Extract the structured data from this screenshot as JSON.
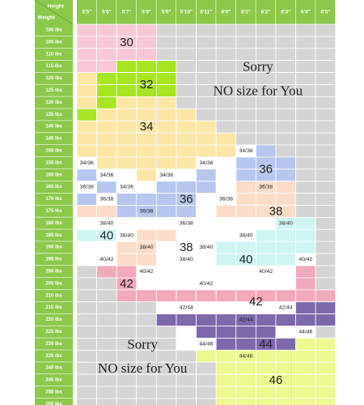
{
  "chart_data": {
    "type": "heatmap",
    "title": "",
    "axis_corner": {
      "top": "Height",
      "left": "Weight"
    },
    "heights": [
      "5'5\"",
      "5'6\"",
      "5'7\"",
      "5'8\"",
      "5'9\"",
      "5'10\"",
      "5'11\"",
      "6'0\"",
      "6'1\"",
      "6'2\"",
      "6'3\"",
      "6'4\"",
      "6'5\""
    ],
    "weights": [
      "100 lbs",
      "105 lbs",
      "110 lbs",
      "115 lbs",
      "120 lbs",
      "125 lbs",
      "130 lbs",
      "135 lbs",
      "140 lbs",
      "145 lbs",
      "150 lbs",
      "155 lbs",
      "160 lbs",
      "165 lbs",
      "170 lbs",
      "175 lbs",
      "180 lbs",
      "185 lbs",
      "190 lbs",
      "195 lbs",
      "200 lbs",
      "205 lbs",
      "210 lbs",
      "215 lbs",
      "220 lbs",
      "225 lbs",
      "230 lbs",
      "235 lbs",
      "240 lbs",
      "245 lbs",
      "250 lbs",
      "255 lbs"
    ],
    "sizes": {
      "30": "#f7c7d6",
      "32": "#a6e51f",
      "34": "#fce6a6",
      "36": "#b6c6ef",
      "38": "#fbdcc8",
      "40": "#cff5f3",
      "42": "#f2a9bb",
      "44": "#7d68ac",
      "46": "#eef890",
      "blank": "#d4d4d4",
      "white": "#ffffff"
    },
    "grid": [
      "30 30 30 30 blank blank blank blank blank blank blank blank blank",
      "30 30 30 30 blank blank blank blank blank blank blank blank blank",
      "30 30 30 30 blank blank blank blank blank blank blank blank blank",
      "30 30 32 32 32 blank blank blank blank blank blank blank blank",
      "34 32 32 32 32 blank blank blank blank blank blank blank blank",
      "34 32 32 32 32 blank blank blank blank blank blank blank blank",
      "34 32 34 34 34 blank blank blank blank blank blank blank blank",
      "32 34 34 34 34 34 blank blank blank blank blank blank blank",
      "34 34 34 34 34 34 34 blank blank blank blank blank blank",
      "34 34 34 34 34 34 34 34 blank blank blank blank blank",
      "34 34 34 34 34 34 34 34 white 36 blank blank blank",
      "white 34 34 34 34 34 white white 36 36 36 blank blank",
      "36 white white 34 white white 36 white 36 36 36 blank blank",
      "white 36 white white 36 36 36 white 38 38 38 blank blank",
      "36 white 36 36 36 36 white white 38 38 38 blank blank",
      "38 38 36 36 36 36 white 38 38 38 38 blank blank",
      "white white white white white white white white white white 40 40 blank",
      "40 40 white 38 38 white white white white 40 40 40 blank",
      "white white 38 38 white white white 40 40 40 40 40 blank",
      "white white 38 38 white white white 40 40 40 40 white blank",
      "blank 42 42 white white white white white white white white 42 blank",
      "blank blank 42 white white white white white white white white 42 blank",
      "blank blank 42 42 42 42 42 42 42 42 42 42 42",
      "blank blank blank blank white white white white white white white 44 44",
      "blank blank blank blank 44 44 44 44 44 44 44 44 44",
      "blank blank blank blank blank white 44 44 44 44 white white blank",
      "blank blank blank blank blank white white 44 44 44 44 46 46",
      "blank blank blank blank blank blank 46 46 46 46 46 46 46",
      "blank blank blank blank blank blank blank 46 46 46 46 46 46",
      "blank blank blank blank blank blank blank 46 46 46 46 46 46",
      "blank blank blank blank blank blank blank 46 46 46 46 46 46",
      "blank blank blank blank blank blank blank 46 46 46 46 46 46"
    ],
    "cell_labels": [
      {
        "text": "34/36",
        "row": 11,
        "col": 0
      },
      {
        "text": "34/36",
        "row": 12,
        "col": 1
      },
      {
        "text": "34/36",
        "row": 12,
        "col": 4
      },
      {
        "text": "34/36",
        "row": 11,
        "col": 6
      },
      {
        "text": "34/36",
        "row": 10,
        "col": 8
      },
      {
        "text": "36/38",
        "row": 13,
        "col": 0
      },
      {
        "text": "34/36",
        "row": 13,
        "col": 2
      },
      {
        "text": "36/38",
        "row": 14,
        "col": 1
      },
      {
        "text": "36/38",
        "row": 14,
        "col": 7
      },
      {
        "text": "36/38",
        "row": 13,
        "col": 9
      },
      {
        "text": "36/38",
        "row": 15,
        "col": 3
      },
      {
        "text": "38/40",
        "row": 16,
        "col": 1
      },
      {
        "text": "36/38",
        "row": 16,
        "col": 5
      },
      {
        "text": "38/40",
        "row": 16,
        "col": 10
      },
      {
        "text": "38/40",
        "row": 17,
        "col": 2
      },
      {
        "text": "38/40",
        "row": 17,
        "col": 8
      },
      {
        "text": "38/40",
        "row": 18,
        "col": 3
      },
      {
        "text": "38/40",
        "row": 18,
        "col": 6
      },
      {
        "text": "40/42",
        "row": 19,
        "col": 1
      },
      {
        "text": "38/40",
        "row": 19,
        "col": 5
      },
      {
        "text": "40/42",
        "row": 19,
        "col": 11
      },
      {
        "text": "40/42",
        "row": 20,
        "col": 3
      },
      {
        "text": "40/42",
        "row": 20,
        "col": 9
      },
      {
        "text": "40/42",
        "row": 21,
        "col": 6
      },
      {
        "text": "42/44",
        "row": 23,
        "col": 5
      },
      {
        "text": "42/44",
        "row": 23,
        "col": 10
      },
      {
        "text": "42/44",
        "row": 24,
        "col": 8
      },
      {
        "text": "44/46",
        "row": 25,
        "col": 11
      },
      {
        "text": "44/46",
        "row": 26,
        "col": 6
      },
      {
        "text": "44/46",
        "row": 27,
        "col": 8
      }
    ],
    "big_labels": [
      {
        "text": "30",
        "row": 1,
        "col": 2
      },
      {
        "text": "32",
        "row": 4.5,
        "col": 3
      },
      {
        "text": "34",
        "row": 8,
        "col": 3
      },
      {
        "text": "36",
        "row": 11.5,
        "col": 9
      },
      {
        "text": "36",
        "row": 14,
        "col": 5
      },
      {
        "text": "38",
        "row": 15,
        "col": 9.5
      },
      {
        "text": "40",
        "row": 17,
        "col": 1
      },
      {
        "text": "38",
        "row": 18,
        "col": 5
      },
      {
        "text": "40",
        "row": 19,
        "col": 8
      },
      {
        "text": "42",
        "row": 21,
        "col": 2
      },
      {
        "text": "42",
        "row": 22.5,
        "col": 8.5
      },
      {
        "text": "44",
        "row": 26,
        "col": 9
      },
      {
        "text": "46",
        "row": 29,
        "col": 9.5
      }
    ],
    "notes": [
      {
        "text": "Sorry",
        "row": 3,
        "col": 8.6
      },
      {
        "text": "NO size for You",
        "row": 5,
        "col": 8.6
      },
      {
        "text": "Sorry",
        "row": 26,
        "col": 2.8
      },
      {
        "text": "NO size for You",
        "row": 28,
        "col": 2.8
      }
    ],
    "header_color": "#8cc84a"
  }
}
